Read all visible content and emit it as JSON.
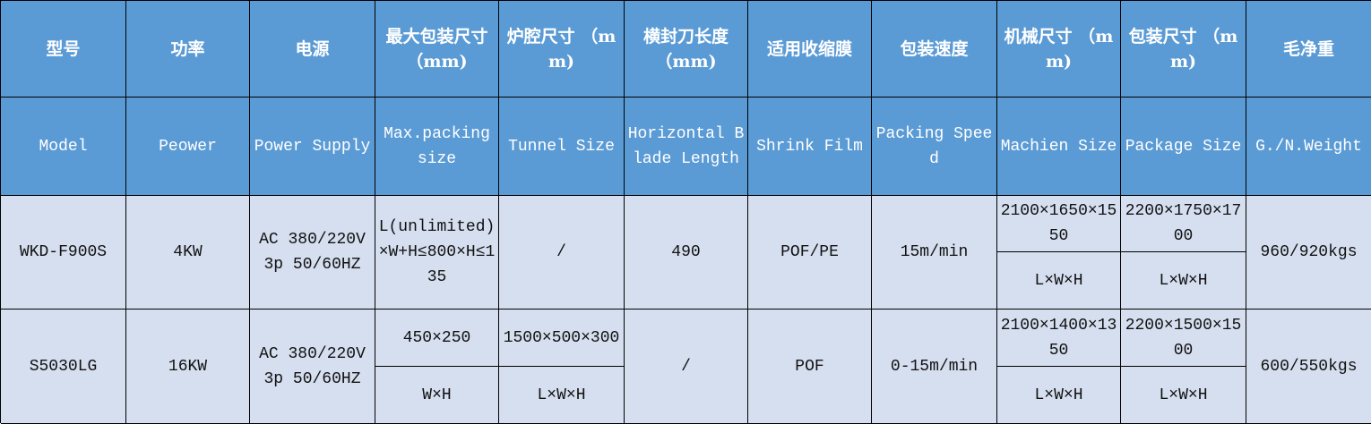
{
  "header_cn": [
    "型号",
    "功率",
    "电源",
    "最大包装尺寸 （mm)",
    "炉腔尺寸 （mm)",
    "横封刀长度 （mm)",
    "适用收缩膜",
    "包装速度",
    "机械尺寸 （mm)",
    "包装尺寸 （mm)",
    "毛净重"
  ],
  "header_en": [
    "Model",
    "Peower",
    "Power Supply",
    "Max.packing size",
    "Tunnel Size",
    "Horizontal Blade Length",
    "Shrink Film",
    "Packing Speed",
    "Machien Size",
    "Package Size",
    "G./N.Weight"
  ],
  "rows": [
    {
      "model": "WKD-F900S",
      "power": "4KW",
      "supply": "AC 380/220V 3p 50/60HZ",
      "max_pack": "L(unlimited)×W+H≤800×H≤135",
      "tunnel": "/",
      "blade": "490",
      "film": "POF/PE",
      "speed": "15m/min",
      "machine": "2100×1650×1550",
      "machine_unit": "L×W×H",
      "package": "2200×1750×1700",
      "package_unit": "L×W×H",
      "weight": "960/920kgs"
    },
    {
      "model": "S5030LG",
      "power": "16KW",
      "supply": "AC 380/220V 3p 50/60HZ",
      "max_pack": "450×250",
      "max_pack_unit": "W×H",
      "tunnel": "1500×500×300",
      "tunnel_unit": "L×W×H",
      "blade": "/",
      "film": "POF",
      "speed": "0-15m/min",
      "machine": "2100×1400×1350",
      "machine_unit": "L×W×H",
      "package": "2200×1500×1500",
      "package_unit": "L×W×H",
      "weight": "600/550kgs"
    }
  ],
  "colors": {
    "header": "#5b9bd5",
    "body": "#d6dff0"
  }
}
